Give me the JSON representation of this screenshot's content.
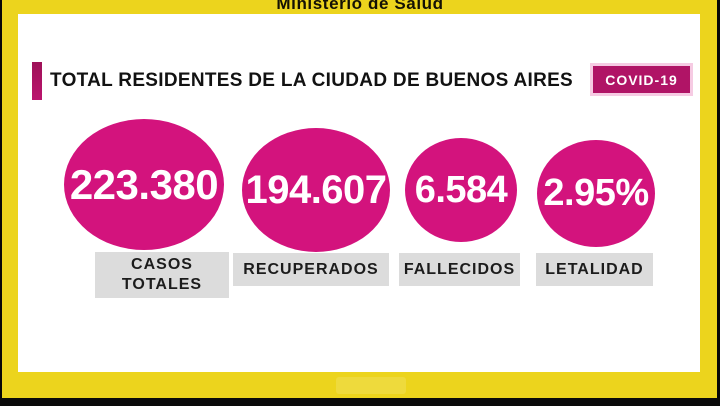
{
  "broadcast": {
    "ministry": "Ministerio de Salud"
  },
  "panel": {
    "title": "TOTAL RESIDENTES DE LA CIUDAD DE BUENOS AIRES",
    "badge": "COVID-19"
  },
  "stats": [
    {
      "value": "223.380",
      "label": "CASOS\nTOTALES"
    },
    {
      "value": "194.607",
      "label": "RECUPERADOS"
    },
    {
      "value": "6.584",
      "label": "FALLECIDOS"
    },
    {
      "value": "2.95%",
      "label": "LETALIDAD"
    }
  ],
  "colors": {
    "frame_yellow": "#ECD41D",
    "circle_magenta": "#D3137D",
    "badge_magenta": "#B01466",
    "accent_magenta": "#A9125F",
    "label_gray": "#DCDCDC",
    "text_black": "#121212",
    "letterbox_black": "#0A0A0A"
  },
  "chart_data": {
    "type": "table",
    "title": "TOTAL RESIDENTES DE LA CIUDAD DE BUENOS AIRES",
    "categories": [
      "CASOS TOTALES",
      "RECUPERADOS",
      "FALLECIDOS",
      "LETALIDAD"
    ],
    "values": [
      223380,
      194607,
      6584,
      2.95
    ],
    "value_labels": [
      "223.380",
      "194.607",
      "6.584",
      "2.95%"
    ],
    "legend": "COVID-19"
  }
}
